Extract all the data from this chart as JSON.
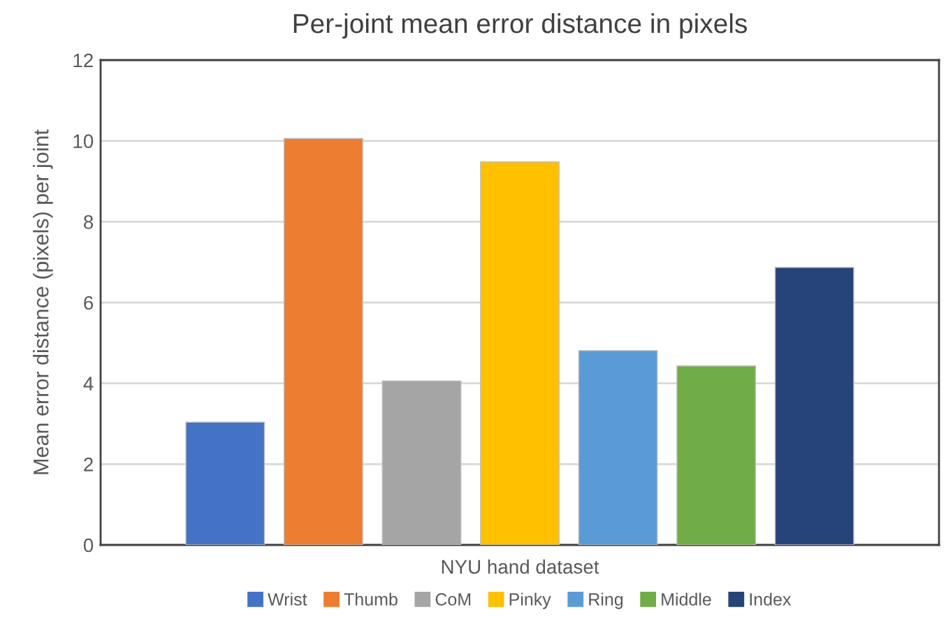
{
  "chart_data": {
    "type": "bar",
    "title": "Per-joint mean error distance in pixels",
    "xlabel": "NYU hand dataset",
    "ylabel": "Mean error distance (pixels) per joint",
    "categories": [
      null
    ],
    "series": [
      {
        "name": "Wrist",
        "color": "#4472c4",
        "values": [
          3.04
        ]
      },
      {
        "name": "Thumb",
        "color": "#ed7d31",
        "values": [
          10.06
        ]
      },
      {
        "name": "CoM",
        "color": "#a5a5a5",
        "values": [
          4.06
        ]
      },
      {
        "name": "Pinky",
        "color": "#ffc000",
        "values": [
          9.48
        ]
      },
      {
        "name": "Ring",
        "color": "#5b9bd5",
        "values": [
          4.81
        ]
      },
      {
        "name": "Middle",
        "color": "#70ad47",
        "values": [
          4.43
        ]
      },
      {
        "name": "Index",
        "color": "#264478",
        "values": [
          6.87
        ]
      }
    ],
    "ylim": [
      0,
      12
    ],
    "yticks": [
      0,
      2,
      4,
      6,
      8,
      10,
      12
    ],
    "grid": "y",
    "legend": "bottom"
  }
}
